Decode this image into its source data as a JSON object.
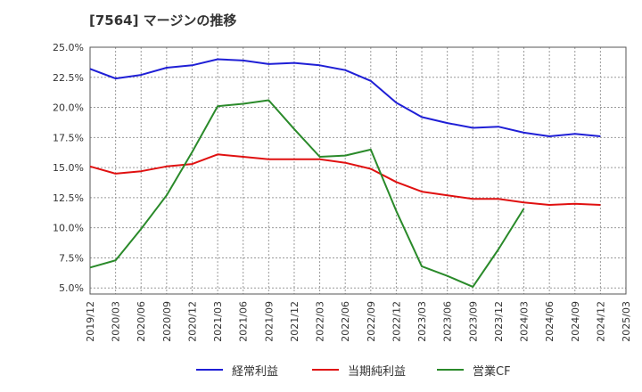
{
  "chart_data": {
    "type": "line",
    "title": "[7564]  マージンの推移",
    "x": [
      "2019/12",
      "2020/03",
      "2020/06",
      "2020/09",
      "2020/12",
      "2021/03",
      "2021/06",
      "2021/09",
      "2021/12",
      "2022/03",
      "2022/06",
      "2022/09",
      "2022/12",
      "2023/03",
      "2023/06",
      "2023/09",
      "2023/12",
      "2024/03",
      "2024/06",
      "2024/09",
      "2024/12",
      "2025/03"
    ],
    "yticks": [
      "5.0%",
      "7.5%",
      "10.0%",
      "12.5%",
      "15.0%",
      "17.5%",
      "20.0%",
      "22.5%",
      "25.0%"
    ],
    "ylim": [
      4.5,
      25.0
    ],
    "grid": true,
    "legend_position": "bottom",
    "series": [
      {
        "name": "経常利益",
        "color": "#1f1fd6",
        "values": [
          23.2,
          22.4,
          22.7,
          23.3,
          23.5,
          24.0,
          23.9,
          23.6,
          23.7,
          23.5,
          23.1,
          22.2,
          20.4,
          19.2,
          18.7,
          18.3,
          18.4,
          17.9,
          17.6,
          17.8,
          17.6,
          null
        ]
      },
      {
        "name": "当期純利益",
        "color": "#e01010",
        "values": [
          15.1,
          14.5,
          14.7,
          15.1,
          15.3,
          16.1,
          15.9,
          15.7,
          15.7,
          15.7,
          15.4,
          14.9,
          13.8,
          13.0,
          12.7,
          12.4,
          12.4,
          12.1,
          11.9,
          12.0,
          11.9,
          null
        ]
      },
      {
        "name": "営業CF",
        "color": "#2a8a2a",
        "values": [
          6.7,
          7.3,
          9.9,
          12.7,
          16.3,
          20.1,
          20.3,
          20.6,
          18.2,
          15.9,
          16.0,
          16.5,
          11.4,
          6.8,
          6.0,
          5.1,
          8.2,
          11.6,
          null,
          null,
          null,
          null
        ]
      }
    ]
  }
}
